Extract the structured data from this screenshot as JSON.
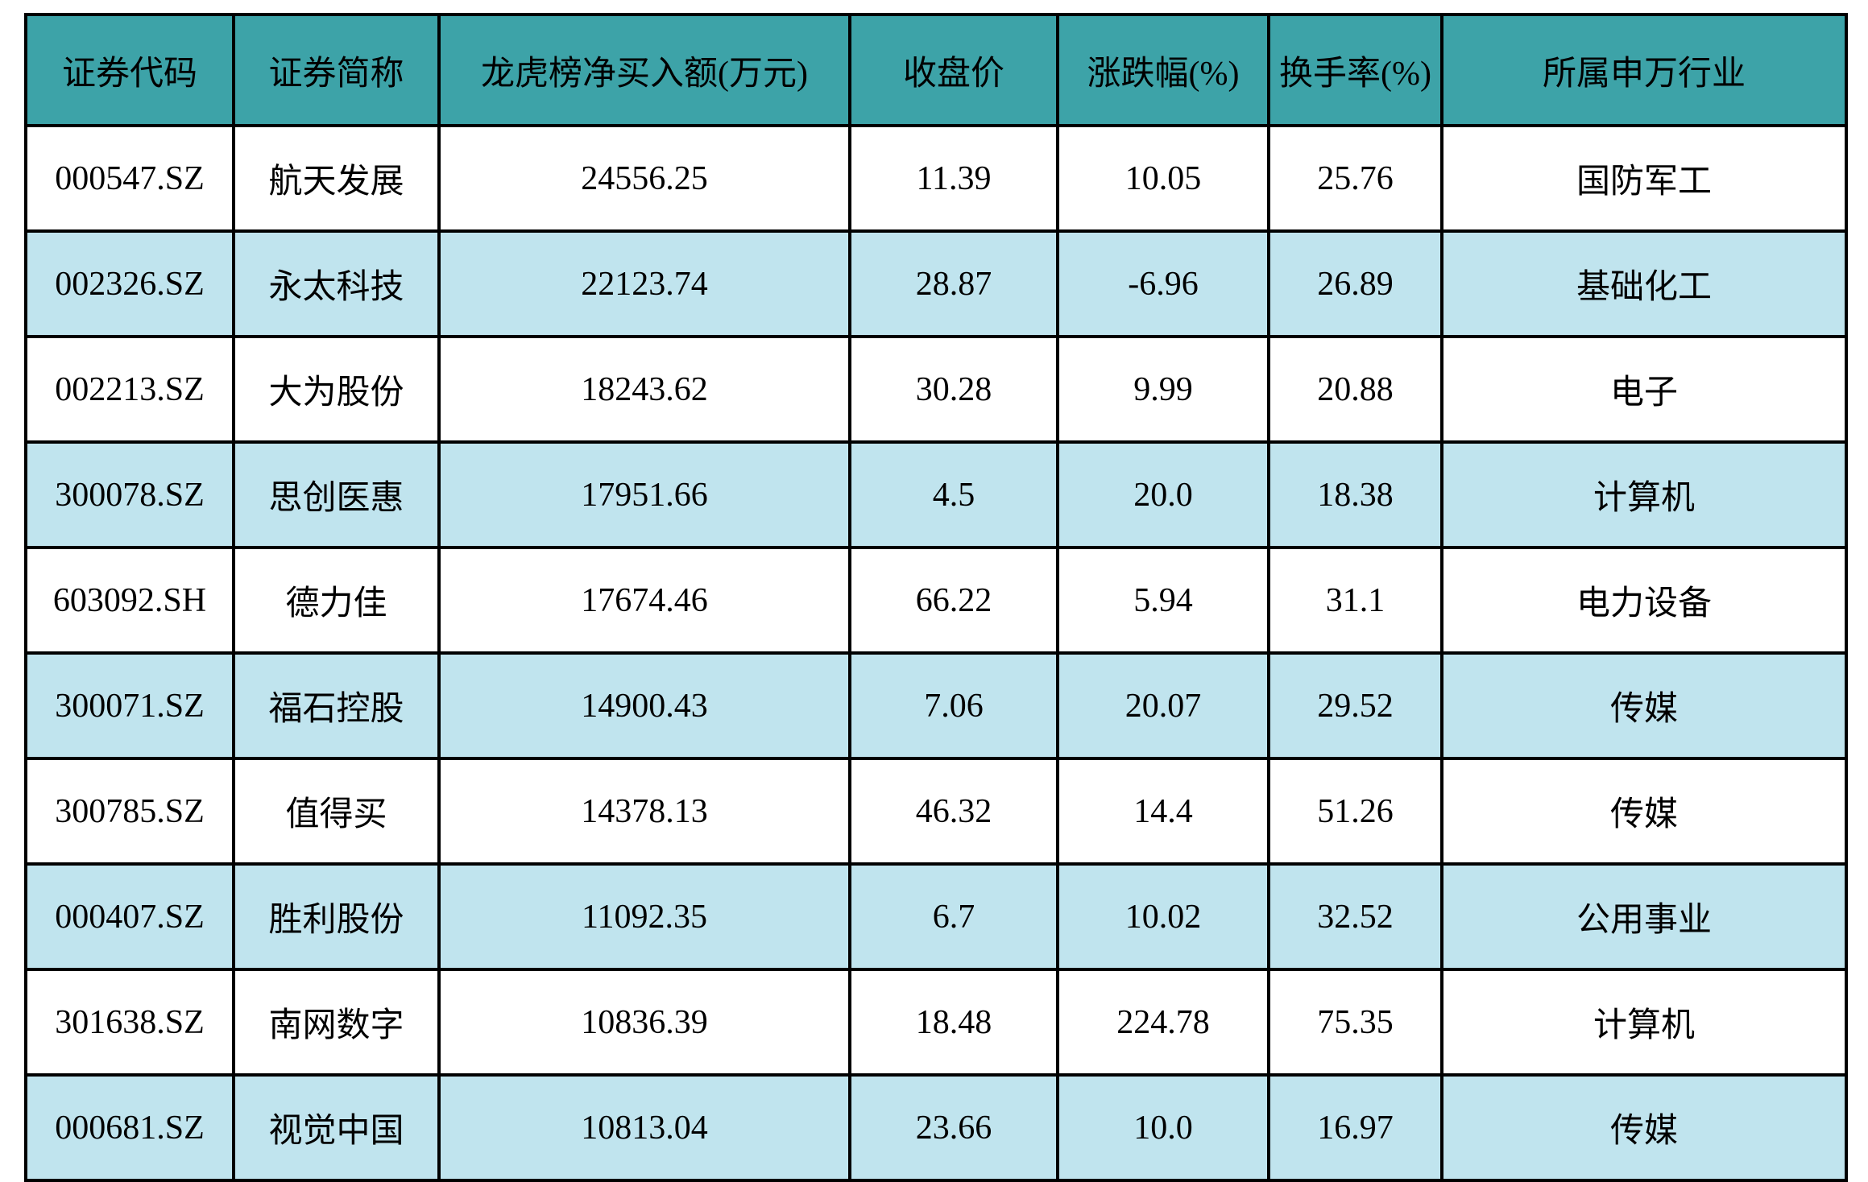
{
  "chart_data": {
    "type": "table",
    "columns": [
      "证券代码",
      "证券简称",
      "龙虎榜净买入额(万元)",
      "收盘价",
      "涨跌幅(%)",
      "换手率(%)",
      "所属申万行业"
    ],
    "rows": [
      [
        "000547.SZ",
        "航天发展",
        "24556.25",
        "11.39",
        "10.05",
        "25.76",
        "国防军工"
      ],
      [
        "002326.SZ",
        "永太科技",
        "22123.74",
        "28.87",
        "-6.96",
        "26.89",
        "基础化工"
      ],
      [
        "002213.SZ",
        "大为股份",
        "18243.62",
        "30.28",
        "9.99",
        "20.88",
        "电子"
      ],
      [
        "300078.SZ",
        "思创医惠",
        "17951.66",
        "4.5",
        "20.0",
        "18.38",
        "计算机"
      ],
      [
        "603092.SH",
        "德力佳",
        "17674.46",
        "66.22",
        "5.94",
        "31.1",
        "电力设备"
      ],
      [
        "300071.SZ",
        "福石控股",
        "14900.43",
        "7.06",
        "20.07",
        "29.52",
        "传媒"
      ],
      [
        "300785.SZ",
        "值得买",
        "14378.13",
        "46.32",
        "14.4",
        "51.26",
        "传媒"
      ],
      [
        "000407.SZ",
        "胜利股份",
        "11092.35",
        "6.7",
        "10.02",
        "32.52",
        "公用事业"
      ],
      [
        "301638.SZ",
        "南网数字",
        "10836.39",
        "18.48",
        "224.78",
        "75.35",
        "计算机"
      ],
      [
        "000681.SZ",
        "视觉中国",
        "10813.04",
        "23.66",
        "10.0",
        "16.97",
        "传媒"
      ]
    ],
    "layout_hints": {
      "header_row": true,
      "zebra_striping": "even data rows highlighted",
      "grid": "on"
    }
  },
  "colors": {
    "header_bg": "#3da3a8",
    "row_bg": "#ffffff",
    "row_alt_bg": "#c0e4ee",
    "border": "#000000",
    "text": "#000000"
  }
}
